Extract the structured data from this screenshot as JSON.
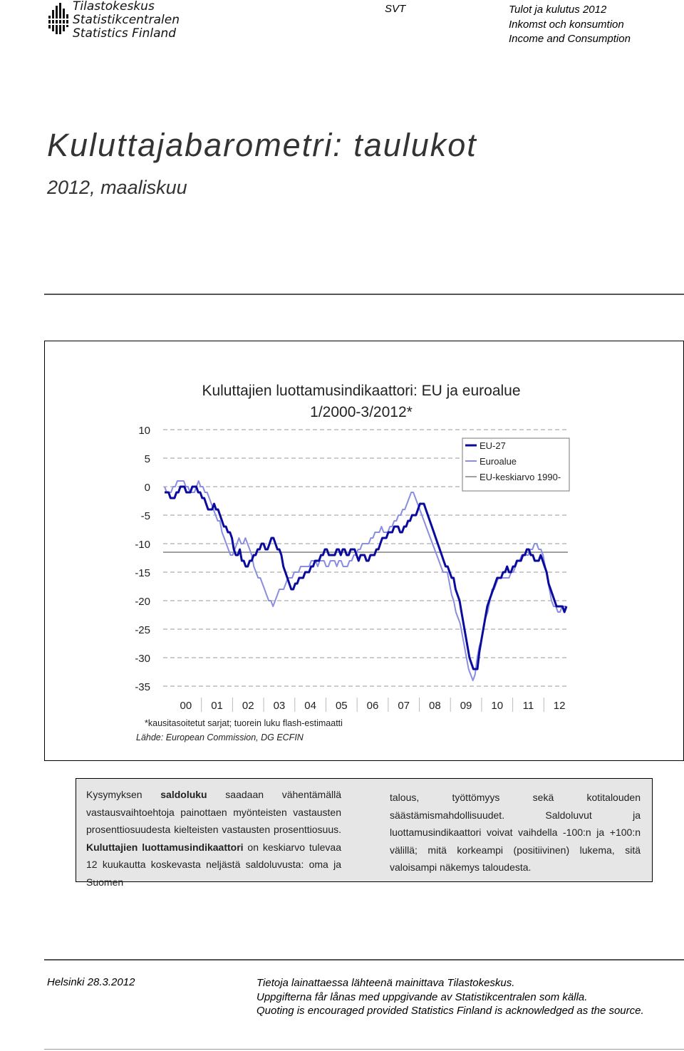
{
  "header": {
    "logo_lines": [
      "Tilastokeskus",
      "Statistikcentralen",
      "Statistics Finland"
    ],
    "series_code": "SVT",
    "publication_lines": [
      "Tulot ja kulutus  2012",
      "Inkomst och konsumtion",
      "Income and Consumption"
    ]
  },
  "title": "Kuluttajabarometri: taulukot",
  "subtitle": "2012, maaliskuu",
  "chart_data": {
    "type": "line",
    "title_lines": [
      "Kuluttajien luottamusindikaattori:  EU ja euroalue",
      "1/2000-3/2012*"
    ],
    "x_tick_labels": [
      "00",
      "01",
      "02",
      "03",
      "04",
      "05",
      "06",
      "07",
      "08",
      "09",
      "10",
      "11",
      "12"
    ],
    "y_ticks": [
      10,
      5,
      0,
      -5,
      -10,
      -15,
      -20,
      -25,
      -30,
      -35
    ],
    "ylim": [
      -35,
      10
    ],
    "x_range": [
      "1/2000",
      "3/2012"
    ],
    "grid": "dashed horizontal",
    "legend_position": "top-right",
    "colors": {
      "eu27": "#0a0a9c",
      "euroalue": "#8a8ee0",
      "average": "#a0a0a0"
    },
    "series": [
      {
        "name": "EU-27",
        "values": [
          -1,
          -1,
          -1,
          -2,
          -2,
          -2,
          -1,
          -1,
          0,
          0,
          0,
          -1,
          -1,
          -1,
          0,
          0,
          0,
          -1,
          -1,
          -2,
          -2,
          -3,
          -4,
          -4,
          -4,
          -3,
          -4,
          -4,
          -5,
          -6,
          -7,
          -7,
          -8,
          -8,
          -9,
          -11,
          -12,
          -12,
          -11,
          -13,
          -13,
          -14,
          -14,
          -13,
          -13,
          -12,
          -12,
          -11,
          -11,
          -10,
          -10,
          -11,
          -11,
          -10,
          -9,
          -9,
          -10,
          -11,
          -11,
          -12,
          -14,
          -15,
          -16,
          -17,
          -18,
          -18,
          -17,
          -17,
          -16,
          -16,
          -16,
          -15,
          -15,
          -15,
          -14,
          -14,
          -13,
          -13,
          -13,
          -12,
          -12,
          -11,
          -11,
          -12,
          -12,
          -12,
          -12,
          -11,
          -11,
          -12,
          -11,
          -11,
          -12,
          -12,
          -11,
          -11,
          -11,
          -12,
          -13,
          -12,
          -12,
          -12,
          -13,
          -13,
          -12,
          -12,
          -12,
          -11,
          -11,
          -10,
          -9,
          -9,
          -9,
          -8,
          -8,
          -8,
          -7,
          -7,
          -7,
          -8,
          -8,
          -7,
          -7,
          -6,
          -6,
          -5,
          -5,
          -5,
          -4,
          -3,
          -3,
          -3,
          -4,
          -5,
          -6,
          -7,
          -8,
          -9,
          -10,
          -11,
          -12,
          -13,
          -14,
          -14,
          -15,
          -16,
          -16,
          -18,
          -19,
          -20,
          -22,
          -24,
          -26,
          -28,
          -30,
          -31,
          -32,
          -32,
          -32,
          -29,
          -27,
          -25,
          -23,
          -21,
          -20,
          -19,
          -18,
          -17,
          -16,
          -16,
          -16,
          -15,
          -15,
          -14,
          -15,
          -15,
          -14,
          -14,
          -13,
          -13,
          -13,
          -12,
          -12,
          -11,
          -11,
          -12,
          -12,
          -13,
          -13,
          -13,
          -12,
          -13,
          -14,
          -15,
          -17,
          -18,
          -19,
          -20,
          -21,
          -21,
          -21,
          -21,
          -22,
          -21
        ]
      },
      {
        "name": "Euroalue",
        "values": [
          0,
          -1,
          -1,
          -1,
          0,
          0,
          1,
          1,
          1,
          1,
          0,
          0,
          -1,
          -1,
          -1,
          0,
          1,
          0,
          0,
          -1,
          -1,
          -2,
          -3,
          -4,
          -5,
          -6,
          -6,
          -8,
          -9,
          -10,
          -11,
          -12,
          -12,
          -11,
          -10,
          -9,
          -10,
          -10,
          -9,
          -10,
          -11,
          -12,
          -14,
          -15,
          -16,
          -16,
          -17,
          -18,
          -19,
          -20,
          -20,
          -21,
          -20,
          -19,
          -18,
          -18,
          -18,
          -17,
          -16,
          -16,
          -16,
          -15,
          -15,
          -15,
          -14,
          -14,
          -14,
          -14,
          -14,
          -13,
          -13,
          -13,
          -14,
          -13,
          -13,
          -13,
          -14,
          -14,
          -13,
          -13,
          -13,
          -14,
          -13,
          -13,
          -14,
          -14,
          -14,
          -13,
          -13,
          -12,
          -12,
          -11,
          -11,
          -10,
          -10,
          -10,
          -10,
          -9,
          -9,
          -8,
          -8,
          -8,
          -7,
          -8,
          -8,
          -8,
          -7,
          -7,
          -6,
          -6,
          -5,
          -5,
          -4,
          -4,
          -3,
          -2,
          -1,
          -1,
          -2,
          -3,
          -4,
          -5,
          -6,
          -7,
          -8,
          -9,
          -10,
          -11,
          -12,
          -13,
          -14,
          -15,
          -15,
          -15,
          -17,
          -19,
          -20,
          -22,
          -23,
          -24,
          -26,
          -28,
          -30,
          -32,
          -33,
          -34,
          -33,
          -30,
          -28,
          -27,
          -25,
          -23,
          -22,
          -20,
          -18,
          -18,
          -17,
          -16,
          -16,
          -16,
          -16,
          -16,
          -16,
          -15,
          -15,
          -14,
          -13,
          -13,
          -12,
          -12,
          -12,
          -12,
          -11,
          -11,
          -10,
          -10,
          -11,
          -11,
          -12,
          -14,
          -16,
          -18,
          -20,
          -21,
          -21,
          -22,
          -22,
          -21,
          -21,
          -21
        ]
      },
      {
        "name": "EU-keskiarvo 1990-",
        "values": [
          -11.5,
          -11.5
        ]
      }
    ]
  },
  "chart_notes": {
    "note": "*kausitasoitetut sarjat; tuorein luku flash-estimaatti",
    "source": "Lähde: European Commission, DG ECFIN"
  },
  "info_box": {
    "col1_parts": [
      {
        "text": "Kysymyksen ",
        "bold": false
      },
      {
        "text": "saldoluku",
        "bold": true
      },
      {
        "text": " saadaan vähentämällä vastausvaihtoehtoja painottaen myönteisten vastausten prosenttiosuudesta kielteisten vastausten prosenttiosuus. ",
        "bold": false
      },
      {
        "text": "Kuluttajien luottamusindikaattori",
        "bold": true
      },
      {
        "text": " on keskiarvo tulevaa 12 kuukautta koskevasta neljästä saldoluvusta: oma ja Suomen",
        "bold": false
      }
    ],
    "col2_text": "talous, työttömyys sekä kotitalouden säästämismahdollisuudet. Saldoluvut ja luottamusindikaattori voivat vaihdella -100:n ja +100:n välillä; mitä korkeampi (positiivinen) lukema, sitä valoisampi näkemys taloudesta."
  },
  "footer": {
    "place_date": "Helsinki 28.3.2012",
    "quote_lines": [
      "Tietoja lainattaessa lähteenä mainittava Tilastokeskus.",
      "Uppgifterna får lånas med uppgivande av Statistikcentralen som källa.",
      "Quoting is encouraged provided Statistics Finland is acknowledged as the source."
    ]
  }
}
